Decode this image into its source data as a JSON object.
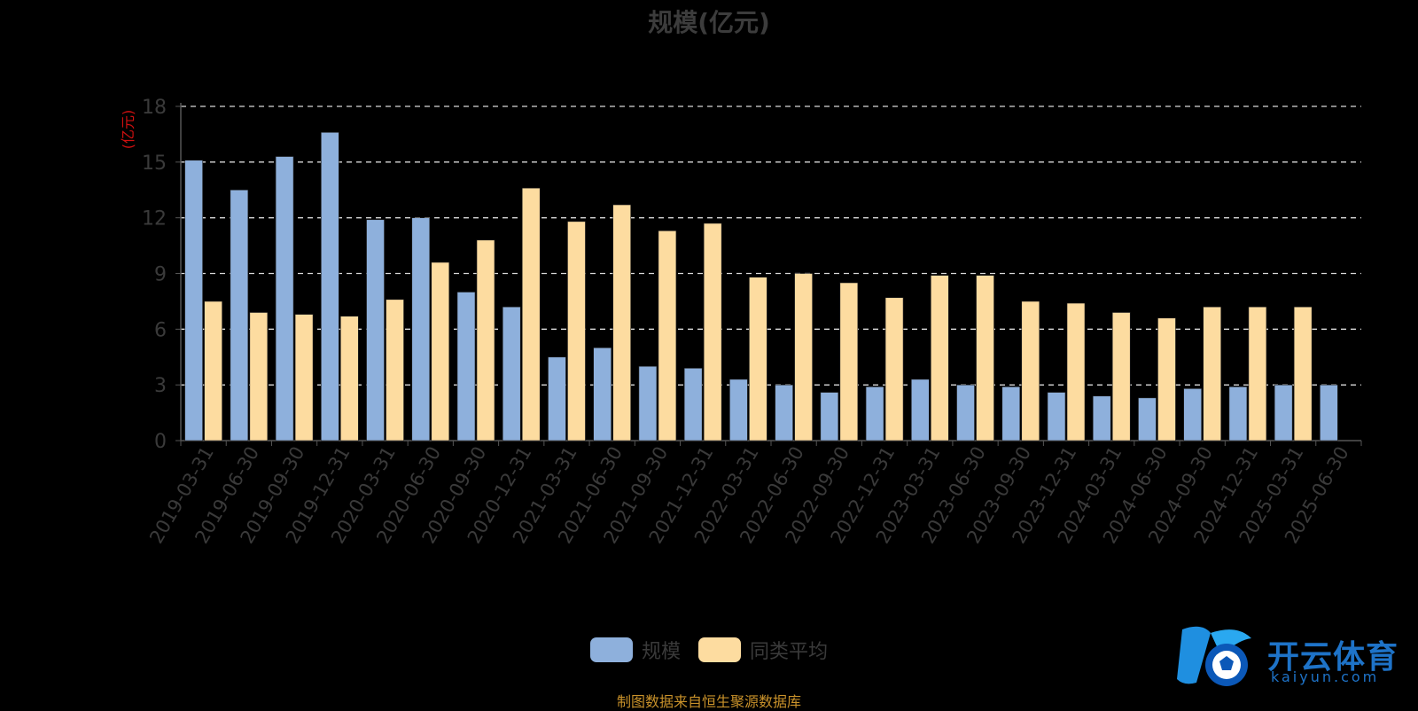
{
  "chart_data": {
    "type": "bar",
    "title": "规模(亿元)",
    "ylabel": "(亿元)",
    "xlabel": "",
    "ylim": [
      0,
      18
    ],
    "yticks": [
      "0",
      "3",
      "6",
      "9",
      "12",
      "15",
      "18"
    ],
    "grid": true,
    "legend_position": "bottom-center",
    "categories": [
      "2019-03-31",
      "2019-06-30",
      "2019-09-30",
      "2019-12-31",
      "2020-03-31",
      "2020-06-30",
      "2020-09-30",
      "2020-12-31",
      "2021-03-31",
      "2021-06-30",
      "2021-09-30",
      "2021-12-31",
      "2022-03-31",
      "2022-06-30",
      "2022-09-30",
      "2022-12-31",
      "2023-03-31",
      "2023-06-30",
      "2023-09-30",
      "2023-12-31",
      "2024-03-31",
      "2024-06-30",
      "2024-09-30",
      "2024-12-31",
      "2025-03-31",
      "2025-06-30"
    ],
    "series": [
      {
        "name": "规模",
        "color": "#8eb0dc",
        "values": [
          15.1,
          13.5,
          15.3,
          16.6,
          11.9,
          12.0,
          8.0,
          7.2,
          4.5,
          5.0,
          4.0,
          3.9,
          3.3,
          3.0,
          2.6,
          2.9,
          3.3,
          3.0,
          2.9,
          2.6,
          2.4,
          2.3,
          2.8,
          2.9,
          3.0,
          3.0
        ]
      },
      {
        "name": "同类平均",
        "color": "#fddca0",
        "values": [
          7.5,
          6.9,
          6.8,
          6.7,
          7.6,
          9.6,
          10.8,
          13.6,
          11.8,
          12.7,
          11.3,
          11.7,
          8.8,
          9.0,
          8.5,
          7.7,
          8.9,
          8.9,
          7.5,
          7.4,
          6.9,
          6.6,
          7.2,
          7.2,
          7.2,
          null
        ]
      }
    ]
  },
  "source_text": "制图数据来自恒生聚源数据库",
  "logo": {
    "name": "开云体育",
    "sub": "kaiyun.com",
    "color": "#1e73c8"
  }
}
